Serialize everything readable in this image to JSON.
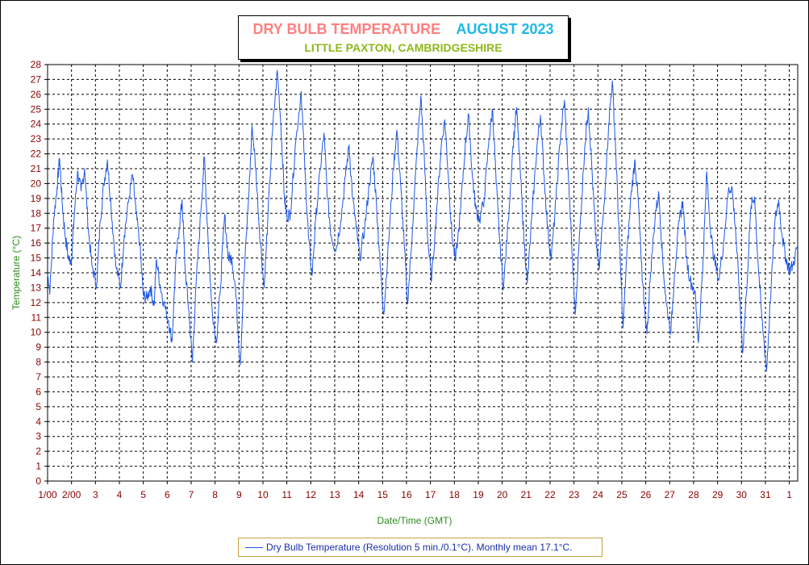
{
  "title": {
    "main": "DRY BULB TEMPERATURE",
    "period": "AUGUST 2023",
    "subtitle": "LITTLE PAXTON, CAMBRIDGESHIRE"
  },
  "legend": {
    "label": "Dry Bulb Temperature (Resolution 5 min./0.1°C). Monthly mean 17.1°C."
  },
  "colors": {
    "series": "#1e57e6",
    "title_main": "#ff7f7f",
    "title_period": "#1fb8e6",
    "subtitle": "#8fb81b",
    "axis_title": "#2e8b1e",
    "tick_label": "#8b0000"
  },
  "chart_data": {
    "type": "line",
    "title": "DRY BULB TEMPERATURE",
    "xlabel": "Date/Time (GMT)",
    "ylabel": "Temperature (°C)",
    "ylim": [
      0,
      28
    ],
    "xlim": [
      1.0,
      32.35
    ],
    "grid": true,
    "legend_position": "bottom-center",
    "yticks": [
      0,
      1,
      2,
      3,
      4,
      5,
      6,
      7,
      8,
      9,
      10,
      11,
      12,
      13,
      14,
      15,
      16,
      17,
      18,
      19,
      20,
      21,
      22,
      23,
      24,
      25,
      26,
      27,
      28
    ],
    "xticks": [
      {
        "x": 1,
        "label": "1/00"
      },
      {
        "x": 2,
        "label": "2/00"
      },
      {
        "x": 3,
        "label": "3"
      },
      {
        "x": 4,
        "label": "4"
      },
      {
        "x": 5,
        "label": "5"
      },
      {
        "x": 6,
        "label": "6"
      },
      {
        "x": 7,
        "label": "7"
      },
      {
        "x": 8,
        "label": "8"
      },
      {
        "x": 9,
        "label": "9"
      },
      {
        "x": 10,
        "label": "10"
      },
      {
        "x": 11,
        "label": "11"
      },
      {
        "x": 12,
        "label": "12"
      },
      {
        "x": 13,
        "label": "13"
      },
      {
        "x": 14,
        "label": "14"
      },
      {
        "x": 15,
        "label": "15"
      },
      {
        "x": 16,
        "label": "16"
      },
      {
        "x": 17,
        "label": "17"
      },
      {
        "x": 18,
        "label": "18"
      },
      {
        "x": 19,
        "label": "19"
      },
      {
        "x": 20,
        "label": "20"
      },
      {
        "x": 21,
        "label": "21"
      },
      {
        "x": 22,
        "label": "22"
      },
      {
        "x": 23,
        "label": "23"
      },
      {
        "x": 24,
        "label": "24"
      },
      {
        "x": 25,
        "label": "25"
      },
      {
        "x": 26,
        "label": "26"
      },
      {
        "x": 27,
        "label": "27"
      },
      {
        "x": 28,
        "label": "28"
      },
      {
        "x": 29,
        "label": "29"
      },
      {
        "x": 30,
        "label": "30"
      },
      {
        "x": 31,
        "label": "31"
      },
      {
        "x": 32,
        "label": "1"
      }
    ],
    "series": [
      {
        "name": "Dry Bulb Temperature",
        "points": [
          [
            1.0,
            13.9
          ],
          [
            1.1,
            12.8
          ],
          [
            1.25,
            17.5
          ],
          [
            1.4,
            19.8
          ],
          [
            1.5,
            21.7
          ],
          [
            1.62,
            18.5
          ],
          [
            1.75,
            16.3
          ],
          [
            1.88,
            14.9
          ],
          [
            2.0,
            14.9
          ],
          [
            2.12,
            18.0
          ],
          [
            2.25,
            20.8
          ],
          [
            2.4,
            19.5
          ],
          [
            2.55,
            21.0
          ],
          [
            2.7,
            17.0
          ],
          [
            2.85,
            14.5
          ],
          [
            3.05,
            13.2
          ],
          [
            3.2,
            17.5
          ],
          [
            3.35,
            20.0
          ],
          [
            3.5,
            21.6
          ],
          [
            3.65,
            18.5
          ],
          [
            3.85,
            14.5
          ],
          [
            4.05,
            13.0
          ],
          [
            4.2,
            16.5
          ],
          [
            4.4,
            19.0
          ],
          [
            4.55,
            20.6
          ],
          [
            4.7,
            18.0
          ],
          [
            4.85,
            16.0
          ],
          [
            5.0,
            12.5
          ],
          [
            5.15,
            12.3
          ],
          [
            5.3,
            13.0
          ],
          [
            5.45,
            11.8
          ],
          [
            5.55,
            14.9
          ],
          [
            5.7,
            13.2
          ],
          [
            5.85,
            12.0
          ],
          [
            6.05,
            10.8
          ],
          [
            6.2,
            9.4
          ],
          [
            6.35,
            14.5
          ],
          [
            6.5,
            17.0
          ],
          [
            6.62,
            18.9
          ],
          [
            6.75,
            14.2
          ],
          [
            6.9,
            11.5
          ],
          [
            7.05,
            8.0
          ],
          [
            7.2,
            13.0
          ],
          [
            7.4,
            18.0
          ],
          [
            7.55,
            21.8
          ],
          [
            7.7,
            16.5
          ],
          [
            7.85,
            12.0
          ],
          [
            8.05,
            9.3
          ],
          [
            8.2,
            12.5
          ],
          [
            8.4,
            17.9
          ],
          [
            8.55,
            15.0
          ],
          [
            8.7,
            15.0
          ],
          [
            8.85,
            13.0
          ],
          [
            9.05,
            7.8
          ],
          [
            9.2,
            13.5
          ],
          [
            9.4,
            19.0
          ],
          [
            9.55,
            23.9
          ],
          [
            9.7,
            21.0
          ],
          [
            9.85,
            17.0
          ],
          [
            10.05,
            13.0
          ],
          [
            10.2,
            17.5
          ],
          [
            10.4,
            23.5
          ],
          [
            10.6,
            27.6
          ],
          [
            10.75,
            24.0
          ],
          [
            10.9,
            19.0
          ],
          [
            11.0,
            17.8
          ],
          [
            11.15,
            18.0
          ],
          [
            11.35,
            22.5
          ],
          [
            11.6,
            26.2
          ],
          [
            11.75,
            21.0
          ],
          [
            11.9,
            16.5
          ],
          [
            12.05,
            13.8
          ],
          [
            12.2,
            17.5
          ],
          [
            12.4,
            21.0
          ],
          [
            12.55,
            23.4
          ],
          [
            12.7,
            19.0
          ],
          [
            12.85,
            16.5
          ],
          [
            13.05,
            15.5
          ],
          [
            13.25,
            17.5
          ],
          [
            13.45,
            20.5
          ],
          [
            13.6,
            22.6
          ],
          [
            13.75,
            19.0
          ],
          [
            13.9,
            17.0
          ],
          [
            14.05,
            15.0
          ],
          [
            14.25,
            17.0
          ],
          [
            14.45,
            20.0
          ],
          [
            14.6,
            21.8
          ],
          [
            14.75,
            18.5
          ],
          [
            14.9,
            14.5
          ],
          [
            15.05,
            11.2
          ],
          [
            15.25,
            16.0
          ],
          [
            15.45,
            21.0
          ],
          [
            15.6,
            23.6
          ],
          [
            15.75,
            20.0
          ],
          [
            15.9,
            16.0
          ],
          [
            16.05,
            11.9
          ],
          [
            16.25,
            17.0
          ],
          [
            16.45,
            22.5
          ],
          [
            16.6,
            25.9
          ],
          [
            16.75,
            21.5
          ],
          [
            16.9,
            16.0
          ],
          [
            17.05,
            13.5
          ],
          [
            17.25,
            18.0
          ],
          [
            17.45,
            22.5
          ],
          [
            17.6,
            24.3
          ],
          [
            17.75,
            20.5
          ],
          [
            17.9,
            16.5
          ],
          [
            18.05,
            14.8
          ],
          [
            18.25,
            18.0
          ],
          [
            18.45,
            22.5
          ],
          [
            18.6,
            24.6
          ],
          [
            18.75,
            20.5
          ],
          [
            18.9,
            18.3
          ],
          [
            19.05,
            17.5
          ],
          [
            19.25,
            19.0
          ],
          [
            19.45,
            23.0
          ],
          [
            19.6,
            25.0
          ],
          [
            19.75,
            20.0
          ],
          [
            19.9,
            16.0
          ],
          [
            20.05,
            12.9
          ],
          [
            20.25,
            17.5
          ],
          [
            20.45,
            22.5
          ],
          [
            20.6,
            25.1
          ],
          [
            20.75,
            21.0
          ],
          [
            20.9,
            16.5
          ],
          [
            21.05,
            13.3
          ],
          [
            21.25,
            18.0
          ],
          [
            21.45,
            22.5
          ],
          [
            21.6,
            24.6
          ],
          [
            21.75,
            20.5
          ],
          [
            21.9,
            17.0
          ],
          [
            22.05,
            14.9
          ],
          [
            22.25,
            19.0
          ],
          [
            22.45,
            23.5
          ],
          [
            22.6,
            25.6
          ],
          [
            22.75,
            21.0
          ],
          [
            22.9,
            16.0
          ],
          [
            23.05,
            11.2
          ],
          [
            23.25,
            17.0
          ],
          [
            23.45,
            22.5
          ],
          [
            23.6,
            25.1
          ],
          [
            23.75,
            21.0
          ],
          [
            23.9,
            16.5
          ],
          [
            24.05,
            14.2
          ],
          [
            24.25,
            18.5
          ],
          [
            24.45,
            24.0
          ],
          [
            24.6,
            26.9
          ],
          [
            24.75,
            22.0
          ],
          [
            24.9,
            16.0
          ],
          [
            25.05,
            10.3
          ],
          [
            25.2,
            15.0
          ],
          [
            25.4,
            19.5
          ],
          [
            25.55,
            21.6
          ],
          [
            25.7,
            18.5
          ],
          [
            25.85,
            13.5
          ],
          [
            26.05,
            9.9
          ],
          [
            26.2,
            14.0
          ],
          [
            26.4,
            18.0
          ],
          [
            26.55,
            19.3
          ],
          [
            26.7,
            15.0
          ],
          [
            26.85,
            12.0
          ],
          [
            27.05,
            10.0
          ],
          [
            27.2,
            14.0
          ],
          [
            27.4,
            17.5
          ],
          [
            27.55,
            18.8
          ],
          [
            27.7,
            15.0
          ],
          [
            27.85,
            13.5
          ],
          [
            28.05,
            12.8
          ],
          [
            28.2,
            9.3
          ],
          [
            28.4,
            15.0
          ],
          [
            28.55,
            20.8
          ],
          [
            28.7,
            17.0
          ],
          [
            28.85,
            15.0
          ],
          [
            29.05,
            13.5
          ],
          [
            29.25,
            16.0
          ],
          [
            29.45,
            19.5
          ],
          [
            29.6,
            19.8
          ],
          [
            29.75,
            17.0
          ],
          [
            29.9,
            13.0
          ],
          [
            30.05,
            8.6
          ],
          [
            30.2,
            12.5
          ],
          [
            30.4,
            18.5
          ],
          [
            30.55,
            19.1
          ],
          [
            30.7,
            14.5
          ],
          [
            30.85,
            11.0
          ],
          [
            31.05,
            7.4
          ],
          [
            31.2,
            12.0
          ],
          [
            31.4,
            17.5
          ],
          [
            31.55,
            18.9
          ],
          [
            31.7,
            16.5
          ],
          [
            31.85,
            15.0
          ],
          [
            32.0,
            14.2
          ],
          [
            32.15,
            14.5
          ],
          [
            32.35,
            15.9
          ]
        ]
      }
    ]
  }
}
